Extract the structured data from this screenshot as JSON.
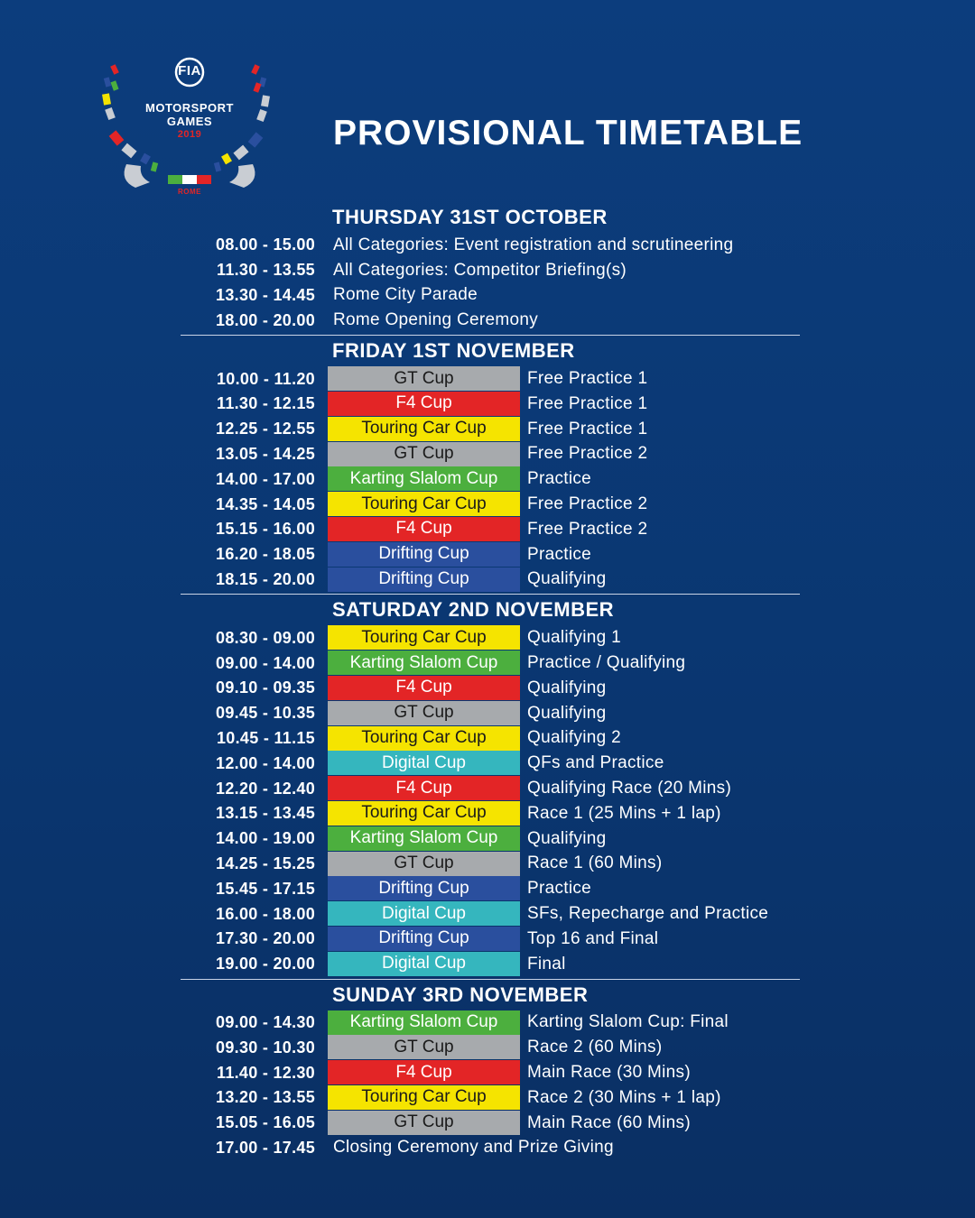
{
  "logo": {
    "line1": "MOTORSPORT",
    "line2": "GAMES",
    "year": "2019",
    "city": "ROME",
    "badge": "FIA"
  },
  "title": "PROVISIONAL TIMETABLE",
  "colors": {
    "GT Cup": "#a7aaad",
    "F4 Cup": "#e32526",
    "Touring Car Cup": "#f5e400",
    "Karting Slalom Cup": "#4caf3e",
    "Drifting Cup": "#2a4f9e",
    "Digital Cup": "#35b6be"
  },
  "days": [
    {
      "title": "THURSDAY 31ST OCTOBER",
      "rows": [
        {
          "time": "08.00 -  15.00",
          "desc": "All Categories: Event registration and scrutineering"
        },
        {
          "time": "11.30 - 13.55",
          "desc": "All Categories: Competitor Briefing(s)"
        },
        {
          "time": "13.30 - 14.45",
          "desc": "Rome City Parade"
        },
        {
          "time": "18.00 - 20.00",
          "desc": "Rome Opening Ceremony"
        }
      ]
    },
    {
      "title": "FRIDAY 1ST NOVEMBER",
      "rows": [
        {
          "time": "10.00 - 11.20",
          "cat": "GT Cup",
          "session": "Free Practice 1"
        },
        {
          "time": "11.30 - 12.15",
          "cat": "F4 Cup",
          "session": "Free Practice 1"
        },
        {
          "time": "12.25 - 12.55",
          "cat": "Touring Car Cup",
          "session": "Free Practice 1"
        },
        {
          "time": "13.05 - 14.25",
          "cat": "GT Cup",
          "session": "Free Practice 2"
        },
        {
          "time": "14.00 - 17.00",
          "cat": "Karting Slalom Cup",
          "session": "Practice"
        },
        {
          "time": "14.35 - 14.05",
          "cat": "Touring Car Cup",
          "session": "Free Practice 2"
        },
        {
          "time": "15.15 - 16.00",
          "cat": "F4 Cup",
          "session": "Free Practice 2"
        },
        {
          "time": "16.20 - 18.05",
          "cat": "Drifting Cup",
          "session": "Practice"
        },
        {
          "time": "18.15 - 20.00",
          "cat": "Drifting Cup",
          "session": "Qualifying"
        }
      ]
    },
    {
      "title": "SATURDAY 2ND NOVEMBER",
      "rows": [
        {
          "time": "08.30 - 09.00",
          "cat": "Touring Car Cup",
          "session": "Qualifying 1"
        },
        {
          "time": "09.00 - 14.00",
          "cat": "Karting Slalom Cup",
          "session": "Practice / Qualifying"
        },
        {
          "time": "09.10 - 09.35",
          "cat": "F4 Cup",
          "session": "Qualifying"
        },
        {
          "time": "09.45 - 10.35",
          "cat": "GT Cup",
          "session": "Qualifying"
        },
        {
          "time": "10.45 - 11.15",
          "cat": "Touring Car Cup",
          "session": "Qualifying 2"
        },
        {
          "time": "12.00 - 14.00",
          "cat": "Digital Cup",
          "session": "QFs and Practice"
        },
        {
          "time": "12.20 - 12.40",
          "cat": "F4 Cup",
          "session": "Qualifying Race (20 Mins)"
        },
        {
          "time": "13.15 - 13.45",
          "cat": "Touring Car Cup",
          "session": "Race 1 (25 Mins + 1 lap)"
        },
        {
          "time": "14.00 - 19.00",
          "cat": "Karting Slalom Cup",
          "session": "Qualifying"
        },
        {
          "time": "14.25 - 15.25",
          "cat": "GT Cup",
          "session": "Race 1 (60 Mins)"
        },
        {
          "time": "15.45 - 17.15",
          "cat": "Drifting Cup",
          "session": "Practice"
        },
        {
          "time": "16.00 - 18.00",
          "cat": "Digital Cup",
          "session": "SFs, Repecharge and Practice"
        },
        {
          "time": "17.30 - 20.00",
          "cat": "Drifting Cup",
          "session": "Top 16 and Final"
        },
        {
          "time": "19.00 - 20.00",
          "cat": "Digital Cup",
          "session": "Final"
        }
      ]
    },
    {
      "title": "SUNDAY 3RD NOVEMBER",
      "rows": [
        {
          "time": "09.00 - 14.30",
          "cat": "Karting Slalom Cup",
          "session": "Karting Slalom Cup: Final"
        },
        {
          "time": "09.30 - 10.30",
          "cat": "GT Cup",
          "session": "Race 2 (60 Mins)"
        },
        {
          "time": "11.40 - 12.30",
          "cat": "F4 Cup",
          "session": "Main Race (30 Mins)"
        },
        {
          "time": "13.20 - 13.55",
          "cat": "Touring Car Cup",
          "session": "Race 2 (30 Mins + 1 lap)"
        },
        {
          "time": "15.05 - 16.05",
          "cat": "GT Cup",
          "session": "Main Race (60 Mins)"
        },
        {
          "time": "17.00 - 17.45",
          "desc": "Closing Ceremony and Prize Giving"
        }
      ]
    }
  ]
}
